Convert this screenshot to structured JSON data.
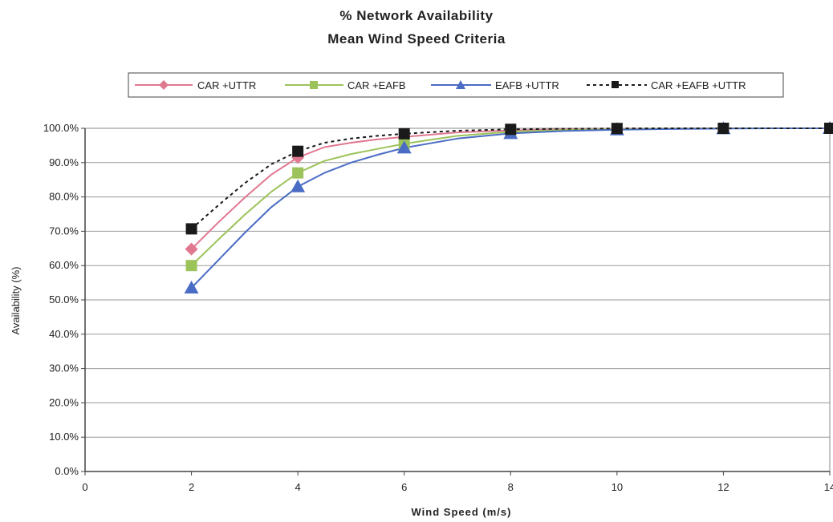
{
  "chart_data": {
    "type": "line",
    "title": "% Network Availability",
    "subtitle": "Mean Wind Speed Criteria",
    "xlabel": "Wind Speed (m/s)",
    "ylabel": "Availability (%)",
    "xlim": [
      0,
      14
    ],
    "ylim": [
      0,
      100
    ],
    "x_ticks": [
      0,
      2,
      4,
      6,
      8,
      10,
      12,
      14
    ],
    "x_tick_labels": [
      "0",
      "2",
      "4",
      "6",
      "8",
      "10",
      "12",
      "14"
    ],
    "y_ticks": [
      0,
      10,
      20,
      30,
      40,
      50,
      60,
      70,
      80,
      90,
      100
    ],
    "y_tick_labels": [
      "0.0%",
      "10.0%",
      "20.0%",
      "30.0%",
      "40.0%",
      "50.0%",
      "60.0%",
      "70.0%",
      "80.0%",
      "90.0%",
      "100.0%"
    ],
    "grid": true,
    "legend_position": "top",
    "marker_x": [
      2,
      4,
      6,
      8,
      10,
      12,
      14
    ],
    "series": [
      {
        "name": "CAR +UTTR",
        "color": "#e07890",
        "marker": "diamond",
        "dash": false,
        "x": [
          2,
          2.5,
          3,
          3.5,
          4,
          4.5,
          5,
          5.5,
          6,
          7,
          8,
          9,
          10,
          11,
          12,
          13,
          14
        ],
        "y": [
          64.8,
          72.5,
          79.8,
          86.5,
          91.5,
          94.5,
          95.8,
          96.8,
          97.5,
          98.8,
          99.4,
          99.7,
          99.9,
          99.95,
          100,
          100,
          100
        ]
      },
      {
        "name": "CAR +EAFB",
        "color": "#9cc35a",
        "marker": "square",
        "dash": false,
        "x": [
          2,
          2.5,
          3,
          3.5,
          4,
          4.5,
          5,
          5.5,
          6,
          7,
          8,
          9,
          10,
          11,
          12,
          13,
          14
        ],
        "y": [
          60,
          67.5,
          74.8,
          81.5,
          87,
          90.5,
          92.5,
          94,
          95.5,
          97.8,
          99,
          99.5,
          99.8,
          99.9,
          100,
          100,
          100
        ]
      },
      {
        "name": "EAFB +UTTR",
        "color": "#4a6cc4",
        "marker": "triangle",
        "dash": false,
        "x": [
          2,
          2.5,
          3,
          3.5,
          4,
          4.5,
          5,
          5.5,
          6,
          7,
          8,
          9,
          10,
          11,
          12,
          13,
          14
        ],
        "y": [
          53.5,
          61.5,
          69.5,
          77,
          83,
          87,
          90,
          92.3,
          94.3,
          97,
          98.5,
          99.2,
          99.6,
          99.8,
          99.9,
          100,
          100
        ]
      },
      {
        "name": "CAR +EAFB +UTTR",
        "color": "#1a1a1a",
        "marker": "square-black",
        "dash": true,
        "x": [
          2,
          2.5,
          3,
          3.5,
          4,
          4.5,
          5,
          5.5,
          6,
          7,
          8,
          9,
          10,
          11,
          12,
          13,
          14
        ],
        "y": [
          70.7,
          77.5,
          84,
          89.5,
          93.3,
          95.8,
          97,
          97.8,
          98.4,
          99.3,
          99.7,
          99.85,
          99.95,
          100,
          100,
          100,
          100
        ]
      }
    ]
  }
}
